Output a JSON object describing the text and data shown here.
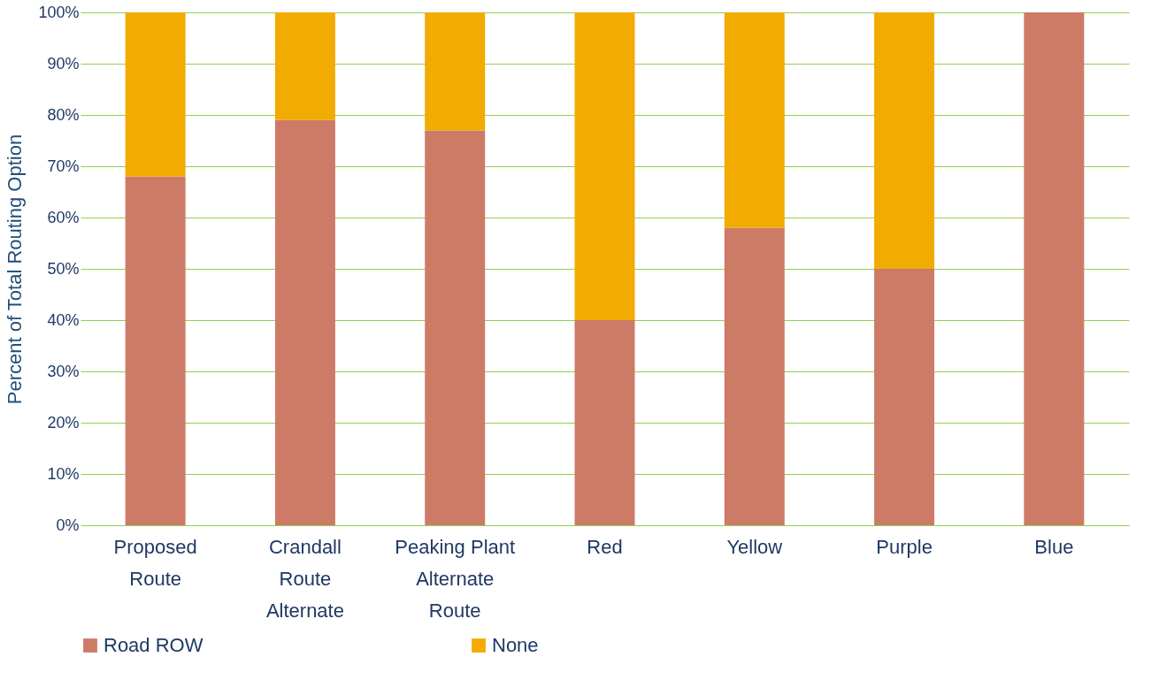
{
  "chart_data": {
    "type": "bar",
    "stacked": true,
    "ylabel": "Percent of Total Routing Option",
    "categories": [
      "Proposed Route",
      "Crandall Route Alternate",
      "Peaking Plant Alternate Route",
      "Red",
      "Yellow",
      "Purple",
      "Blue"
    ],
    "series": [
      {
        "name": "Road ROW",
        "color": "#cd7b67",
        "values": [
          68,
          79,
          77,
          40,
          58,
          50,
          100
        ]
      },
      {
        "name": "None",
        "color": "#f2ab00",
        "values": [
          32,
          21,
          23,
          60,
          42,
          50,
          0
        ]
      }
    ],
    "ylim": [
      0,
      100
    ],
    "yticks": [
      {
        "value": 0,
        "label": "0%"
      },
      {
        "value": 10,
        "label": "10%"
      },
      {
        "value": 20,
        "label": "20%"
      },
      {
        "value": 30,
        "label": "30%"
      },
      {
        "value": 40,
        "label": "40%"
      },
      {
        "value": 50,
        "label": "50%"
      },
      {
        "value": 60,
        "label": "60%"
      },
      {
        "value": 70,
        "label": "70%"
      },
      {
        "value": 80,
        "label": "80%"
      },
      {
        "value": 90,
        "label": "90%"
      },
      {
        "value": 100,
        "label": "100%"
      }
    ],
    "grid": "y",
    "legend": "bottom"
  }
}
